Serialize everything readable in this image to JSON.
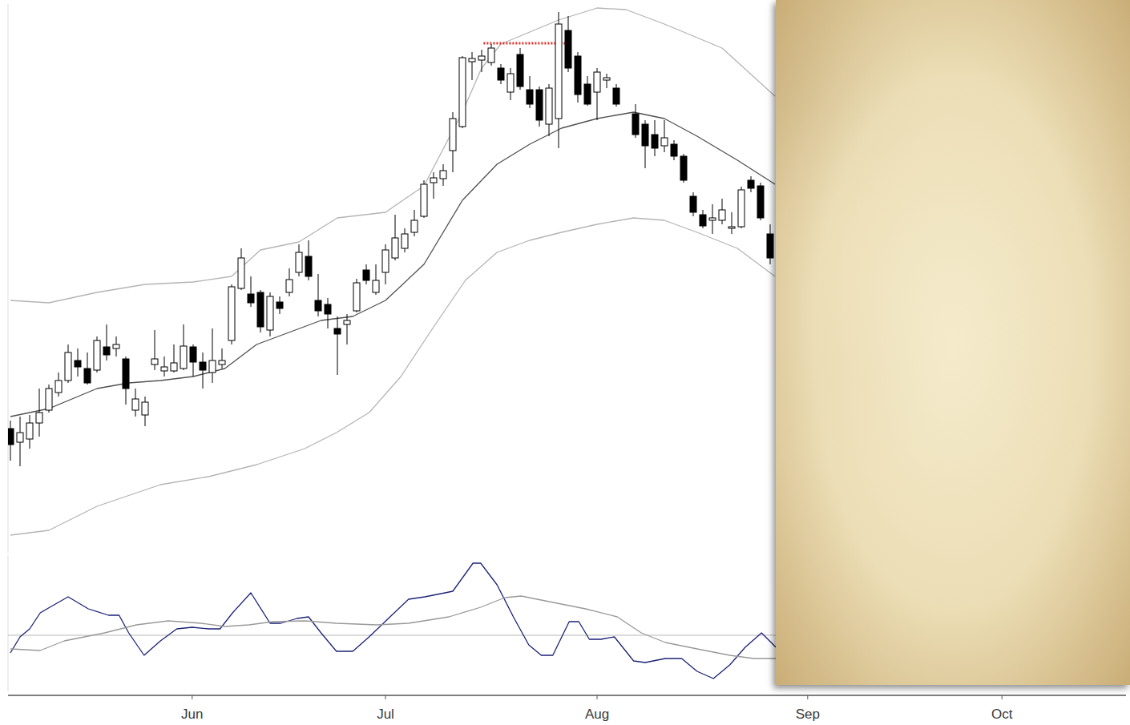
{
  "chart_data": [
    {
      "type": "candlestick",
      "color": "#000000",
      "xlim": [
        -0.25,
        116.0
      ],
      "ylim": [
        0,
        68.5
      ],
      "tick_labels": false,
      "x": [
        0,
        1,
        2,
        3,
        4,
        5,
        6,
        7,
        8,
        9,
        10,
        11,
        12,
        13,
        14,
        15,
        16,
        17,
        18,
        19,
        20,
        21,
        22,
        23,
        24,
        25,
        26,
        27,
        28,
        29,
        30,
        31,
        32,
        33,
        34,
        35,
        36,
        37,
        38,
        39,
        40,
        41,
        42,
        43,
        44,
        45,
        46,
        47,
        48,
        49,
        50,
        51,
        52,
        53,
        54,
        55,
        56,
        57,
        58,
        59,
        60,
        61,
        62,
        63,
        65,
        66,
        67,
        68,
        69,
        70,
        71,
        72,
        73,
        74,
        75,
        76,
        77,
        78,
        79
      ],
      "open": [
        15.5,
        13.8,
        14.2,
        16.2,
        17.8,
        20.0,
        21.5,
        24.0,
        23.0,
        22.8,
        25.7,
        25.5,
        24.2,
        17.8,
        17.2,
        23.5,
        22.7,
        22.7,
        23.0,
        25.7,
        23.8,
        22.5,
        23.5,
        26.5,
        33.0,
        32.3,
        32.5,
        27.8,
        31.3,
        32.5,
        35.0,
        37.0,
        31.5,
        31.0,
        28.0,
        28.5,
        30.2,
        35.3,
        32.5,
        35.0,
        36.8,
        38.0,
        40.0,
        42.0,
        46.2,
        46.7,
        50.2,
        53.2,
        61.3,
        61.5,
        61.2,
        60.5,
        57.5,
        62.2,
        57.8,
        57.8,
        53.5,
        54.2,
        65.2,
        62.0,
        58.5,
        57.5,
        59.0,
        58.0,
        54.8,
        53.5,
        52.2,
        50.8,
        51.0,
        49.5,
        44.5,
        42.2,
        41.5,
        41.5,
        40.5,
        40.7,
        46.5,
        45.8,
        39.8
      ],
      "high": [
        16.5,
        17.0,
        17.2,
        20.5,
        21.0,
        22.5,
        26.0,
        25.5,
        25.0,
        27.0,
        28.5,
        27.0,
        24.5,
        20.5,
        19.5,
        27.8,
        24.5,
        26.0,
        28.5,
        26.0,
        25.0,
        28.0,
        25.5,
        33.5,
        38.0,
        34.5,
        32.8,
        32.5,
        32.0,
        35.5,
        38.5,
        39.0,
        34.8,
        31.8,
        29.5,
        29.8,
        34.2,
        36.0,
        36.0,
        38.5,
        42.2,
        40.5,
        42.8,
        46.5,
        47.5,
        48.5,
        55.0,
        62.0,
        62.5,
        62.8,
        63.5,
        61.0,
        60.5,
        63.0,
        59.5,
        58.2,
        58.5,
        67.5,
        67.0,
        62.5,
        59.5,
        60.5,
        59.8,
        58.5,
        56.0,
        54.0,
        54.0,
        54.0,
        51.5,
        49.8,
        45.0,
        42.8,
        43.5,
        44.2,
        42.5,
        45.7,
        47.0,
        46.2,
        41.0
      ],
      "low": [
        11.5,
        10.8,
        13.0,
        14.5,
        17.5,
        19.5,
        21.2,
        22.0,
        21.0,
        22.5,
        24.0,
        24.5,
        18.5,
        17.0,
        15.8,
        22.8,
        22.0,
        22.5,
        22.8,
        22.0,
        20.5,
        21.2,
        23.0,
        26.0,
        32.8,
        30.7,
        27.5,
        27.0,
        29.8,
        32.0,
        34.5,
        34.0,
        29.5,
        28.0,
        22.2,
        26.0,
        30.0,
        33.5,
        32.2,
        33.5,
        36.5,
        37.5,
        39.5,
        41.8,
        44.2,
        45.8,
        47.5,
        53.0,
        59.0,
        60.0,
        60.8,
        58.5,
        56.5,
        57.8,
        55.5,
        53.2,
        52.0,
        50.5,
        60.0,
        56.2,
        55.8,
        54.0,
        58.0,
        55.7,
        51.8,
        48.0,
        49.5,
        50.0,
        49.0,
        46.2,
        42.0,
        40.5,
        39.8,
        41.0,
        39.8,
        40.5,
        45.0,
        41.5,
        36.0
      ],
      "close": [
        13.5,
        15.0,
        16.2,
        17.5,
        20.5,
        21.5,
        25.0,
        23.2,
        21.2,
        26.5,
        24.7,
        26.0,
        20.5,
        19.2,
        18.8,
        24.2,
        23.2,
        23.7,
        25.8,
        23.8,
        22.8,
        24.0,
        24.0,
        33.2,
        36.8,
        31.2,
        28.2,
        32.0,
        30.5,
        34.1,
        37.5,
        34.5,
        30.2,
        29.8,
        27.3,
        29.0,
        33.7,
        34.0,
        34.0,
        37.8,
        39.3,
        39.8,
        41.5,
        46.0,
        46.8,
        47.7,
        54.2,
        61.8,
        61.7,
        62.0,
        63.0,
        59.0,
        59.8,
        58.2,
        56.0,
        54.0,
        58.0,
        66.0,
        60.5,
        57.2,
        56.0,
        60.0,
        59.3,
        56.0,
        52.2,
        50.8,
        50.5,
        51.8,
        49.5,
        46.5,
        42.5,
        40.8,
        41.8,
        42.8,
        40.7,
        45.3,
        45.5,
        41.8,
        36.8
      ],
      "series": [
        {
          "type": "line",
          "color": "#b4b4b4",
          "x": [
            0,
            4,
            9,
            14,
            19,
            23,
            26,
            30,
            34,
            39,
            43,
            47,
            49,
            51,
            53,
            57,
            61,
            64,
            68,
            74,
            79.5
          ],
          "values": [
            31.5,
            31.2,
            32.5,
            33.5,
            33.8,
            34.5,
            37.8,
            38.8,
            41.8,
            42.5,
            45.8,
            55.0,
            60.5,
            63.5,
            64.5,
            66.5,
            68.0,
            67.8,
            66.0,
            63.0,
            57.0
          ]
        },
        {
          "type": "line",
          "color": "#505050",
          "x": [
            0,
            4,
            9,
            12.3,
            15.6,
            19,
            22.3,
            25.6,
            32.3,
            35.6,
            39,
            43,
            47,
            50.6,
            54,
            57.3,
            61,
            64.8,
            68,
            71.4,
            75.6,
            79.5
          ],
          "values": [
            17.0,
            18.0,
            20.5,
            21.2,
            21.5,
            22.0,
            23.0,
            26.0,
            29.0,
            29.5,
            31.5,
            36.0,
            44.0,
            48.5,
            51.0,
            53.0,
            54.2,
            55.0,
            54.2,
            52.0,
            49.0,
            46.0
          ]
        },
        {
          "type": "line",
          "color": "#b4b4b4",
          "x": [
            0,
            4,
            9,
            15.6,
            20.6,
            25.6,
            30.6,
            33.9,
            37.3,
            40.6,
            43.9,
            47.3,
            50.6,
            54,
            57.3,
            61,
            64.8,
            68,
            71.4,
            75.6,
            79.5
          ],
          "values": [
            2.2,
            2.8,
            5.8,
            8.5,
            9.5,
            11.0,
            13.0,
            15.0,
            17.5,
            22.0,
            28.0,
            34.0,
            37.5,
            39.0,
            40.0,
            41.0,
            41.8,
            41.5,
            40.0,
            38.0,
            34.5
          ]
        },
        {
          "type": "line",
          "color": "#e0302a",
          "line_style": "dotted",
          "x": [
            49.2,
            58.3
          ],
          "values": [
            63.6,
            63.6
          ]
        }
      ]
    },
    {
      "type": "line",
      "xlim": [
        -0.25,
        116.0
      ],
      "ylim": [
        -7,
        10
      ],
      "xticks": [
        {
          "value": 18.9,
          "label": "Jun"
        },
        {
          "value": 39,
          "label": "Jul"
        },
        {
          "value": 61,
          "label": "Aug"
        },
        {
          "value": 82.9,
          "label": "Sep"
        },
        {
          "value": 103.1,
          "label": "Oct"
        }
      ],
      "yticks": [
        0
      ],
      "grid": true,
      "tick_labels": "x",
      "series": [
        {
          "color": "#1c2277",
          "x": [
            0,
            1,
            2,
            3.1,
            4.1,
            6,
            8.1,
            10.2,
            11.3,
            12.3,
            13.9,
            15.6,
            17.3,
            18.9,
            20.6,
            21.8,
            23.1,
            25,
            27,
            28.1,
            29.8,
            31,
            32.3,
            33.9,
            35.6,
            37.3,
            39.3,
            41.4,
            43.1,
            45.2,
            46,
            48.1,
            48.9,
            50.6,
            52.3,
            53.9,
            55.2,
            56.4,
            58.1,
            59.1,
            60.2,
            61.4,
            62.8,
            64.8,
            66,
            68.1,
            69.8,
            71.4,
            73.1,
            74.8,
            76.4,
            78.1,
            79.6
          ],
          "values": [
            -2.2,
            -0.2,
            0.8,
            2.8,
            3.5,
            4.8,
            3.3,
            2.5,
            2.5,
            0.3,
            -2.5,
            -0.7,
            0.8,
            1.0,
            0.8,
            0.8,
            2.8,
            5.3,
            1.5,
            1.5,
            2.1,
            2.3,
            0.3,
            -2.0,
            -2.0,
            -0.2,
            2.1,
            4.5,
            4.8,
            5.3,
            5.5,
            9.0,
            9.0,
            6.3,
            2.3,
            -1.2,
            -2.5,
            -2.5,
            1.7,
            1.7,
            -0.5,
            -0.5,
            -0.2,
            -3.2,
            -3.4,
            -2.9,
            -2.9,
            -4.5,
            -5.4,
            -3.7,
            -1.5,
            0.3,
            -1.5
          ]
        },
        {
          "color": "#999999",
          "x": [
            0,
            3.1,
            5.6,
            9.8,
            13.1,
            16.4,
            19.8,
            22.3,
            24.8,
            27.3,
            30.6,
            33.9,
            38.1,
            41.4,
            45.6,
            48.9,
            51.4,
            53.1,
            55.6,
            59.8,
            63.1,
            65.6,
            68.1,
            71.4,
            74.8,
            77.3,
            79.6
          ],
          "values": [
            -1.7,
            -1.9,
            -0.7,
            0.3,
            1.3,
            1.8,
            1.5,
            1.1,
            1.3,
            1.7,
            1.8,
            1.5,
            1.3,
            1.5,
            2.3,
            3.5,
            4.7,
            4.9,
            4.3,
            3.3,
            2.3,
            0.3,
            -0.9,
            -1.7,
            -2.5,
            -2.9,
            -2.9
          ]
        }
      ]
    }
  ]
}
